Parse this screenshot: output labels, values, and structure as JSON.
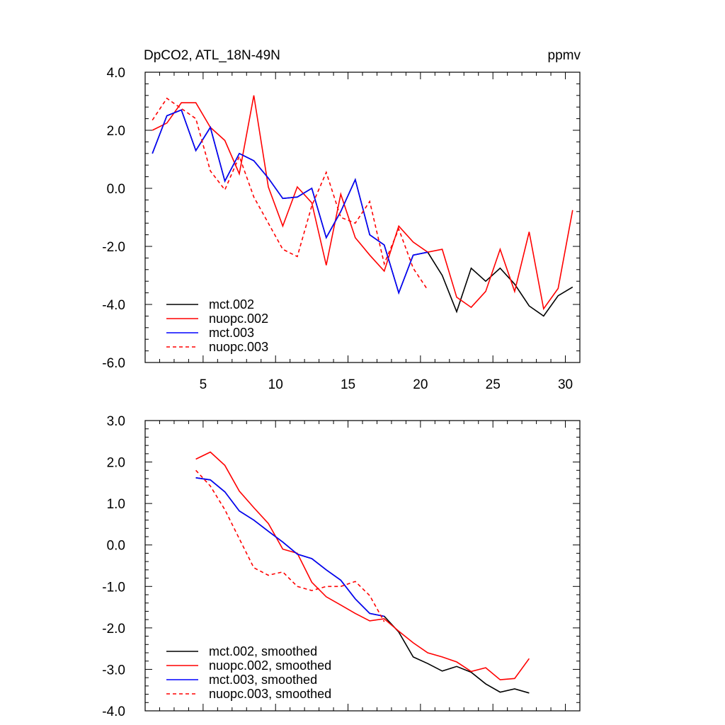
{
  "chart_data": [
    {
      "type": "line",
      "title": "DpCO2, ATL_18N-49N",
      "units": "ppmv",
      "xlim": [
        1,
        31
      ],
      "ylim": [
        -6,
        4
      ],
      "x_ticks": [
        5,
        10,
        15,
        20,
        25,
        30
      ],
      "y_ticks": [
        -6,
        -4,
        -2,
        0,
        2,
        4
      ],
      "y_tick_labels": [
        "-6.0",
        "-4.0",
        "-2.0",
        "0.0",
        "2.0",
        "4.0"
      ],
      "legend_position": "bottom-left",
      "series": [
        {
          "name": "mct.002",
          "color": "#000000",
          "dash": "solid",
          "x": [
            1.5,
            2.5,
            3.5,
            4.5,
            5.5,
            6.5,
            7.5,
            8.5,
            9.5,
            10.5,
            11.5,
            12.5,
            13.5,
            14.5,
            15.5,
            16.5,
            17.5,
            18.5,
            19.5,
            20.5,
            21.5,
            22.5,
            23.5,
            24.5,
            25.5,
            26.5,
            27.5,
            28.5,
            29.5,
            30.5
          ],
          "y": [
            1.2,
            2.5,
            2.7,
            1.3,
            2.1,
            0.25,
            1.2,
            0.95,
            0.35,
            -0.35,
            -0.3,
            0.0,
            -1.7,
            -0.8,
            0.3,
            -1.6,
            -1.95,
            -3.6,
            -2.3,
            -2.2,
            -3.0,
            -4.25,
            -2.75,
            -3.2,
            -2.75,
            -3.3,
            -4.05,
            -4.4,
            -3.7,
            -3.4
          ]
        },
        {
          "name": "nuopc.002",
          "color": "#ff0000",
          "dash": "solid",
          "x": [
            1.5,
            2.5,
            3.5,
            4.5,
            5.5,
            6.5,
            7.5,
            8.5,
            9.5,
            10.5,
            11.5,
            12.5,
            13.5,
            14.5,
            15.5,
            16.5,
            17.5,
            18.5,
            19.5,
            20.5,
            21.5,
            22.5,
            23.5,
            24.5,
            25.5,
            26.5,
            27.5,
            28.5,
            29.5,
            30.5
          ],
          "y": [
            2.0,
            2.25,
            2.95,
            2.95,
            2.1,
            1.65,
            0.5,
            3.2,
            0.05,
            -1.3,
            0.05,
            -0.5,
            -2.65,
            -0.2,
            -1.7,
            -2.3,
            -2.85,
            -1.3,
            -1.85,
            -2.2,
            -2.1,
            -3.75,
            -4.1,
            -3.55,
            -2.1,
            -3.55,
            -1.5,
            -4.15,
            -3.45,
            -0.75
          ]
        },
        {
          "name": "mct.003",
          "color": "#0000ff",
          "dash": "solid",
          "x": [
            1.5,
            2.5,
            3.5,
            4.5,
            5.5,
            6.5,
            7.5,
            8.5,
            9.5,
            10.5,
            11.5,
            12.5,
            13.5,
            14.5,
            15.5,
            16.5,
            17.5,
            18.5,
            19.5,
            20.5
          ],
          "y": [
            1.2,
            2.5,
            2.7,
            1.3,
            2.1,
            0.25,
            1.2,
            0.95,
            0.35,
            -0.35,
            -0.3,
            0.0,
            -1.7,
            -0.8,
            0.3,
            -1.6,
            -1.95,
            -3.6,
            -2.3,
            -2.2
          ]
        },
        {
          "name": "nuopc.003",
          "color": "#ff0000",
          "dash": "dashed",
          "x": [
            1.5,
            2.5,
            3.5,
            4.5,
            5.5,
            6.5,
            7.5,
            8.5,
            9.5,
            10.5,
            11.5,
            12.5,
            13.5,
            14.5,
            15.5,
            16.5,
            17.5,
            18.5,
            19.5,
            20.5
          ],
          "y": [
            2.35,
            3.1,
            2.75,
            2.4,
            0.6,
            -0.05,
            1.1,
            -0.3,
            -1.2,
            -2.1,
            -2.35,
            -0.6,
            0.55,
            -1.0,
            -1.2,
            -0.45,
            -2.6,
            -1.4,
            -2.75,
            -3.5
          ]
        }
      ]
    },
    {
      "type": "line",
      "xlim": [
        1,
        31
      ],
      "ylim": [
        -4,
        3
      ],
      "x_ticks": [
        5,
        10,
        15,
        20,
        25,
        30
      ],
      "y_ticks": [
        -4,
        -3,
        -2,
        -1,
        0,
        1,
        2,
        3
      ],
      "y_tick_labels": [
        "-4.0",
        "-3.0",
        "-2.0",
        "-1.0",
        "0.0",
        "1.0",
        "2.0",
        "3.0"
      ],
      "legend_position": "bottom-left",
      "series": [
        {
          "name": "mct.002, smoothed",
          "color": "#000000",
          "dash": "solid",
          "x": [
            4.5,
            5.5,
            6.5,
            7.5,
            8.5,
            9.5,
            10.5,
            11.5,
            12.5,
            13.5,
            14.5,
            15.5,
            16.5,
            17.5,
            18.5,
            19.5,
            20.5,
            21.5,
            22.5,
            23.5,
            24.5,
            25.5,
            26.5,
            27.5
          ],
          "y": [
            1.62,
            1.57,
            1.28,
            0.82,
            0.6,
            0.33,
            0.07,
            -0.22,
            -0.33,
            -0.6,
            -0.85,
            -1.3,
            -1.65,
            -1.72,
            -2.1,
            -2.7,
            -2.86,
            -3.04,
            -2.93,
            -3.07,
            -3.35,
            -3.55,
            -3.47,
            -3.57
          ]
        },
        {
          "name": "nuopc.002, smoothed",
          "color": "#ff0000",
          "dash": "solid",
          "x": [
            4.5,
            5.5,
            6.5,
            7.5,
            8.5,
            9.5,
            10.5,
            11.5,
            12.5,
            13.5,
            14.5,
            15.5,
            16.5,
            17.5,
            18.5,
            19.5,
            20.5,
            21.5,
            22.5,
            23.5,
            24.5,
            25.5,
            26.5,
            27.5
          ],
          "y": [
            2.07,
            2.24,
            1.92,
            1.3,
            0.9,
            0.52,
            -0.1,
            -0.2,
            -0.9,
            -1.25,
            -1.45,
            -1.65,
            -1.83,
            -1.78,
            -2.08,
            -2.36,
            -2.6,
            -2.7,
            -2.82,
            -3.05,
            -2.96,
            -3.25,
            -3.22,
            -2.74
          ]
        },
        {
          "name": "mct.003, smoothed",
          "color": "#0000ff",
          "dash": "solid",
          "x": [
            4.5,
            5.5,
            6.5,
            7.5,
            8.5,
            9.5,
            10.5,
            11.5,
            12.5,
            13.5,
            14.5,
            15.5,
            16.5,
            17.5
          ],
          "y": [
            1.62,
            1.57,
            1.28,
            0.82,
            0.6,
            0.33,
            0.07,
            -0.22,
            -0.33,
            -0.6,
            -0.85,
            -1.3,
            -1.65,
            -1.72
          ]
        },
        {
          "name": "nuopc.003, smoothed",
          "color": "#ff0000",
          "dash": "dashed",
          "x": [
            4.5,
            5.5,
            6.5,
            7.5,
            8.5,
            9.5,
            10.5,
            11.5,
            12.5,
            13.5,
            14.5,
            15.5,
            16.5,
            17.5
          ],
          "y": [
            1.8,
            1.42,
            0.85,
            0.15,
            -0.55,
            -0.73,
            -0.65,
            -1.0,
            -1.1,
            -1.0,
            -1.0,
            -0.88,
            -1.22,
            -1.85
          ]
        }
      ]
    }
  ]
}
